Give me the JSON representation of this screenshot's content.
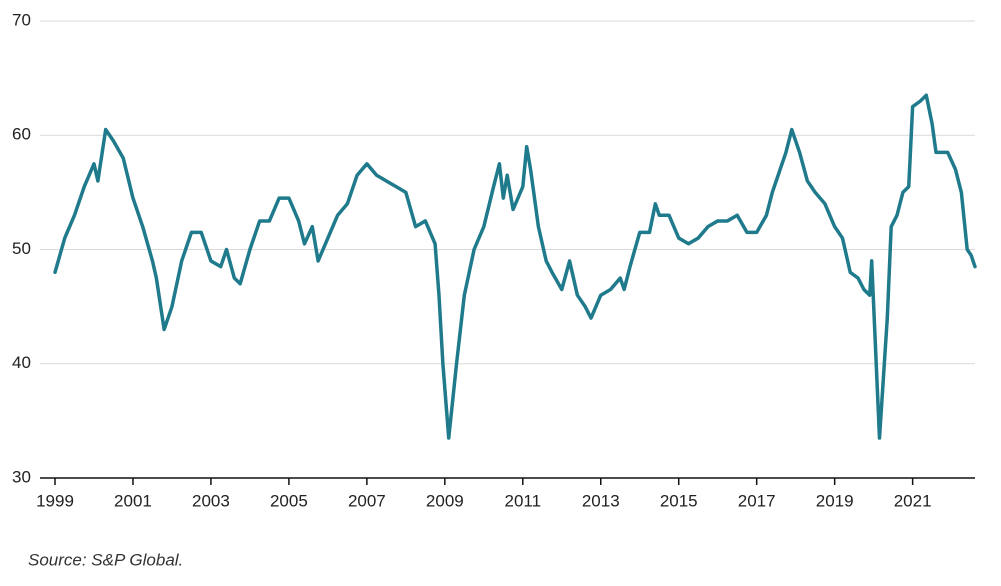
{
  "chart_data": {
    "type": "line",
    "source": "Source:  S&P Global.",
    "color": "#1f7a8c",
    "grid": true,
    "xlim": [
      1999,
      2022.6
    ],
    "ylim": [
      30,
      70
    ],
    "xticks": [
      1999,
      2001,
      2003,
      2005,
      2007,
      2009,
      2011,
      2013,
      2015,
      2017,
      2019,
      2021
    ],
    "yticks": [
      30,
      40,
      50,
      60,
      70
    ],
    "x": [
      1999.0,
      1999.25,
      1999.5,
      1999.75,
      2000.0,
      2000.1,
      2000.3,
      2000.5,
      2000.75,
      2001.0,
      2001.25,
      2001.5,
      2001.6,
      2001.8,
      2002.0,
      2002.25,
      2002.5,
      2002.75,
      2003.0,
      2003.25,
      2003.4,
      2003.6,
      2003.75,
      2004.0,
      2004.25,
      2004.5,
      2004.75,
      2005.0,
      2005.25,
      2005.4,
      2005.6,
      2005.75,
      2006.0,
      2006.25,
      2006.5,
      2006.75,
      2007.0,
      2007.25,
      2007.5,
      2007.75,
      2008.0,
      2008.25,
      2008.5,
      2008.75,
      2008.85,
      2008.95,
      2009.1,
      2009.3,
      2009.5,
      2009.75,
      2010.0,
      2010.25,
      2010.4,
      2010.5,
      2010.6,
      2010.75,
      2011.0,
      2011.1,
      2011.2,
      2011.4,
      2011.6,
      2011.75,
      2012.0,
      2012.2,
      2012.4,
      2012.6,
      2012.75,
      2013.0,
      2013.25,
      2013.5,
      2013.6,
      2013.75,
      2014.0,
      2014.25,
      2014.4,
      2014.5,
      2014.75,
      2015.0,
      2015.25,
      2015.5,
      2015.75,
      2016.0,
      2016.25,
      2016.5,
      2016.75,
      2017.0,
      2017.25,
      2017.4,
      2017.6,
      2017.75,
      2017.9,
      2018.1,
      2018.3,
      2018.5,
      2018.75,
      2019.0,
      2019.2,
      2019.4,
      2019.6,
      2019.75,
      2019.9,
      2019.95,
      2020.15,
      2020.35,
      2020.45,
      2020.6,
      2020.75,
      2020.9,
      2021.0,
      2021.2,
      2021.35,
      2021.5,
      2021.6,
      2021.75,
      2021.9,
      2022.1,
      2022.25,
      2022.4,
      2022.5,
      2022.6
    ],
    "values": [
      48,
      51,
      53,
      55.5,
      57.5,
      56,
      60.5,
      59.5,
      58,
      54.5,
      52,
      49,
      47.5,
      43,
      45,
      49,
      51.5,
      51.5,
      49,
      48.5,
      50,
      47.5,
      47,
      50,
      52.5,
      52.5,
      54.5,
      54.5,
      52.5,
      50.5,
      52,
      49,
      51,
      53,
      54,
      56.5,
      57.5,
      56.5,
      56,
      55.5,
      55,
      52,
      52.5,
      50.5,
      46,
      40,
      33.5,
      40,
      46,
      50,
      52,
      55.5,
      57.5,
      54.5,
      56.5,
      53.5,
      55.5,
      59,
      57,
      52,
      49,
      48,
      46.5,
      49,
      46,
      45,
      44,
      46,
      46.5,
      47.5,
      46.5,
      48.5,
      51.5,
      51.5,
      54,
      53,
      53,
      51,
      50.5,
      51,
      52,
      52.5,
      52.5,
      53,
      51.5,
      51.5,
      53,
      55,
      57,
      58.5,
      60.5,
      58.5,
      56,
      55,
      54,
      52,
      51,
      48,
      47.5,
      46.5,
      46,
      49,
      33.5,
      44,
      52,
      53,
      55,
      55.5,
      62.5,
      63,
      63.5,
      61,
      58.5,
      58.5,
      58.5,
      57,
      55,
      50,
      49.5,
      48.5
    ]
  }
}
